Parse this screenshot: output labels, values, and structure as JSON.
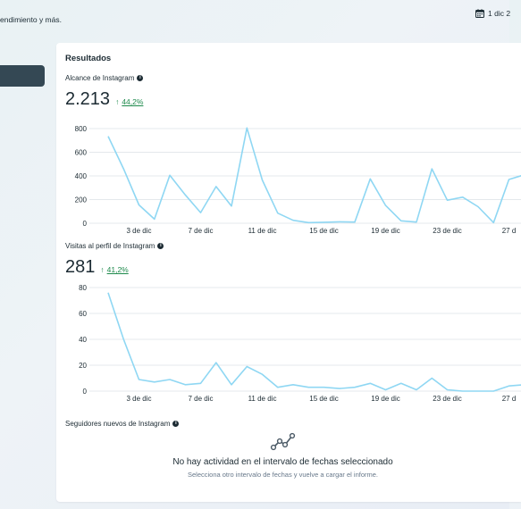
{
  "header": {
    "description_fragment": "endimiento y más.",
    "date_range_fragment": "1 dic 2",
    "calendar_icon": "calendar-icon"
  },
  "card": {
    "title": "Resultados"
  },
  "reach": {
    "label": "Alcance de Instagram",
    "value": "2.213",
    "change": "44,2%",
    "change_color": "#1e8a4c"
  },
  "visits": {
    "label": "Visitas al perfil de Instagram",
    "value": "281",
    "change": "41,2%",
    "change_color": "#1e8a4c"
  },
  "followers": {
    "label": "Seguidores nuevos de Instagram",
    "empty_title": "No hay actividad en el intervalo de fechas seleccionado",
    "empty_subtitle": "Selecciona otro intervalo de fechas y vuelve a cargar el informe."
  },
  "chart_data": [
    {
      "type": "line",
      "series_color": "#8fd7f3",
      "x_tick_labels": [
        "3 de dic",
        "7 de dic",
        "11 de dic",
        "15 de dic",
        "19 de dic",
        "23 de dic",
        "27 d"
      ],
      "x_tick_day": [
        3,
        7,
        11,
        15,
        19,
        23,
        27
      ],
      "y_ticks": [
        0,
        200,
        400,
        600,
        800
      ],
      "ylim": [
        0,
        800
      ],
      "grid": true,
      "x_day_of_december": [
        1,
        2,
        3,
        4,
        5,
        6,
        7,
        8,
        9,
        10,
        11,
        12,
        13,
        14,
        15,
        16,
        17,
        18,
        19,
        20,
        21,
        22,
        23,
        24,
        25,
        26,
        27,
        28
      ],
      "values": [
        735,
        460,
        155,
        35,
        405,
        240,
        90,
        310,
        145,
        805,
        365,
        85,
        25,
        5,
        8,
        12,
        10,
        375,
        150,
        20,
        10,
        460,
        195,
        220,
        140,
        5,
        370,
        410
      ]
    },
    {
      "type": "line",
      "series_color": "#8fd7f3",
      "x_tick_labels": [
        "3 de dic",
        "7 de dic",
        "11 de dic",
        "15 de dic",
        "19 de dic",
        "23 de dic",
        "27 d"
      ],
      "x_tick_day": [
        3,
        7,
        11,
        15,
        19,
        23,
        27
      ],
      "y_ticks": [
        0,
        20,
        40,
        60,
        80
      ],
      "ylim": [
        0,
        80
      ],
      "grid": true,
      "x_day_of_december": [
        1,
        2,
        3,
        4,
        5,
        6,
        7,
        8,
        9,
        10,
        11,
        12,
        13,
        14,
        15,
        16,
        17,
        18,
        19,
        20,
        21,
        22,
        23,
        24,
        25,
        26,
        27,
        28
      ],
      "values": [
        76,
        40,
        9,
        7,
        9,
        5,
        6,
        22,
        5,
        19,
        13,
        3,
        5,
        3,
        3,
        2,
        3,
        6,
        1,
        6,
        1,
        10,
        1,
        0,
        0,
        0,
        4,
        5
      ]
    }
  ]
}
